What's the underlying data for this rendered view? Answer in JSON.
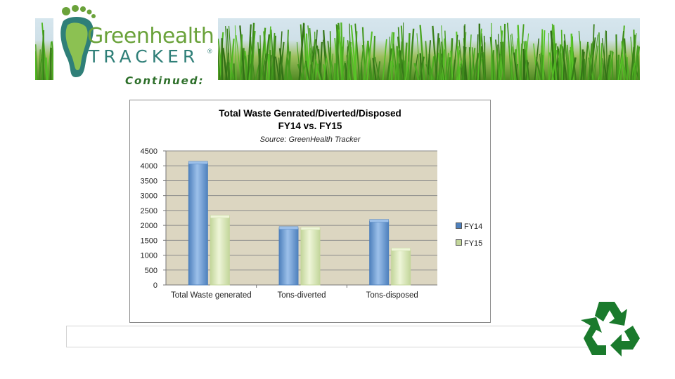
{
  "header": {
    "logo_word1": "Greenhealth",
    "logo_word2": "TRACKER",
    "logo_tm": "®",
    "continued_label": "Continued:"
  },
  "colors": {
    "fy14": "#4f81bd",
    "fy15": "#c3d69b",
    "plot_bg": "#dcd6c1",
    "logo_green": "#6aa23a",
    "logo_teal": "#2f7f78",
    "recycle_green": "#1a7a2c"
  },
  "icons": {
    "recycle": "recycle-icon",
    "footprint": "footprint-logo-icon"
  },
  "chart_data": {
    "type": "bar",
    "title": "Total Waste Genrated/Diverted/Disposed",
    "subtitle": "FY14 vs. FY15",
    "source": "Source: GreenHealth Tracker",
    "categories": [
      "Total Waste generated",
      "Tons-diverted",
      "Tons-disposed"
    ],
    "series": [
      {
        "name": "FY14",
        "values": [
          4080,
          1890,
          2130
        ]
      },
      {
        "name": "FY15",
        "values": [
          2270,
          1870,
          1170
        ]
      }
    ],
    "ylim": [
      0,
      4500
    ],
    "yticks": [
      "0",
      "500",
      "1000",
      "1500",
      "2000",
      "2500",
      "3000",
      "3500",
      "4000",
      "4500"
    ],
    "xlabel": "",
    "ylabel": "",
    "grid": true,
    "legend": "right"
  }
}
